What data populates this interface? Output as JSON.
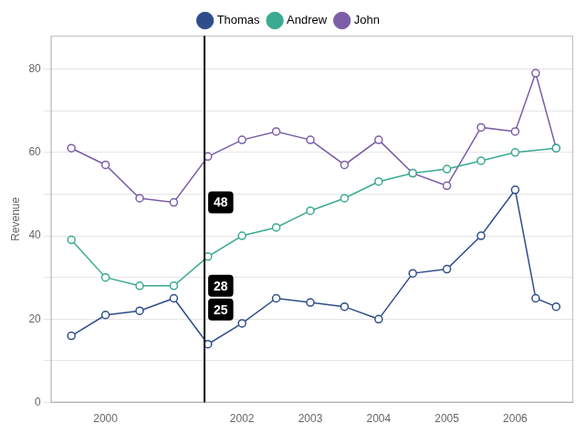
{
  "chart_data": {
    "type": "line",
    "ylabel": "Revenue",
    "xlim": [
      1999.2,
      2006.85
    ],
    "xticks": [
      2000,
      2002,
      2003,
      2004,
      2005,
      2006
    ],
    "ylim": [
      0,
      88
    ],
    "yticks": [
      0,
      {
        "value": 10,
        "label": ""
      },
      20,
      {
        "value": 30,
        "label": ""
      },
      40,
      {
        "value": 50,
        "label": ""
      },
      60,
      {
        "value": 70,
        "label": ""
      },
      80
    ],
    "grid": "y",
    "legend": "top",
    "series": [
      {
        "name": "Thomas",
        "color": "#2e4d8a",
        "marker": "circle",
        "x": [
          1999.5,
          2000.0,
          2000.5,
          2001.0,
          2001.5,
          2002.0,
          2002.5,
          2003.0,
          2003.5,
          2004.0,
          2004.5,
          2005.0,
          2005.5,
          2006.0,
          2006.3,
          2006.6
        ],
        "values": [
          16,
          21,
          22,
          25,
          14,
          19,
          25,
          24,
          23,
          20,
          31,
          32,
          40,
          51,
          25,
          23
        ]
      },
      {
        "name": "Andrew",
        "color": "#3aaa90",
        "marker": "circle",
        "x": [
          1999.5,
          2000.0,
          2000.5,
          2001.0,
          2001.5,
          2002.0,
          2002.5,
          2003.0,
          2003.5,
          2004.0,
          2004.5,
          2005.0,
          2005.5,
          2006.0,
          2006.6
        ],
        "values": [
          39,
          30,
          28,
          28,
          35,
          40,
          42,
          46,
          49,
          53,
          55,
          56,
          58,
          60,
          61
        ]
      },
      {
        "name": "John",
        "color": "#7b5ea7",
        "marker": "circle",
        "x": [
          1999.5,
          2000.0,
          2000.5,
          2001.0,
          2001.5,
          2002.0,
          2002.5,
          2003.0,
          2003.5,
          2004.0,
          2004.5,
          2005.0,
          2005.5,
          2006.0,
          2006.3,
          2006.6
        ],
        "values": [
          61,
          57,
          49,
          48,
          59,
          63,
          65,
          63,
          57,
          63,
          55,
          52,
          66,
          65,
          79,
          61
        ]
      }
    ],
    "vline": {
      "x": 2001.45,
      "color": "#000000"
    },
    "annotations": [
      {
        "text": "48",
        "x": 2001.45,
        "y": 48
      },
      {
        "text": "28",
        "x": 2001.45,
        "y": 28
      },
      {
        "text": "25",
        "x": 2001.45,
        "y": 25
      }
    ]
  }
}
